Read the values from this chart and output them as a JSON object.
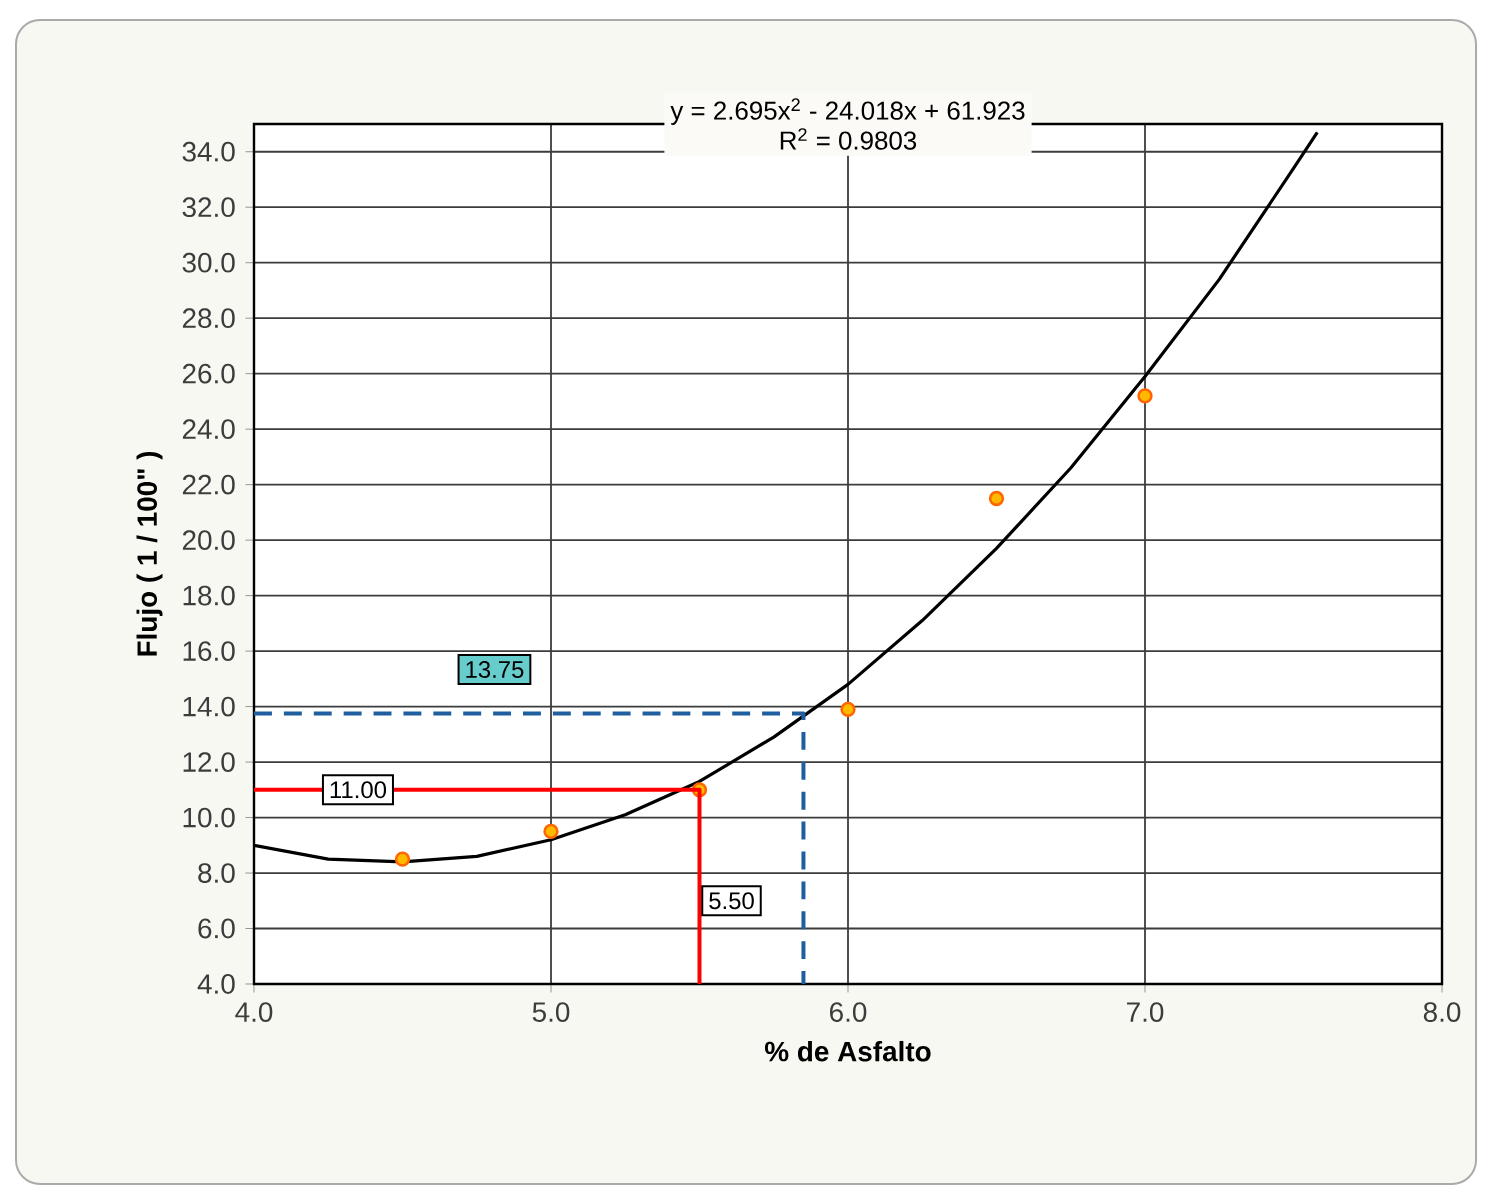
{
  "chart_data": {
    "type": "scatter",
    "xlabel": "% de Asfalto",
    "ylabel": "Flujo ( 1 / 100\" )",
    "xlim": [
      4.0,
      8.0
    ],
    "ylim": [
      4.0,
      35.0
    ],
    "xticks": [
      {
        "value": 4.0,
        "label": "4.0"
      },
      {
        "value": 5.0,
        "label": "5.0"
      },
      {
        "value": 6.0,
        "label": "6.0"
      },
      {
        "value": 7.0,
        "label": "7.0"
      },
      {
        "value": 8.0,
        "label": "8.0"
      }
    ],
    "yticks": [
      {
        "value": 4.0,
        "label": "4.0"
      },
      {
        "value": 6.0,
        "label": "6.0"
      },
      {
        "value": 8.0,
        "label": "8.0"
      },
      {
        "value": 10.0,
        "label": "10.0"
      },
      {
        "value": 12.0,
        "label": "12.0"
      },
      {
        "value": 14.0,
        "label": "14.0"
      },
      {
        "value": 16.0,
        "label": "16.0"
      },
      {
        "value": 18.0,
        "label": "18.0"
      },
      {
        "value": 20.0,
        "label": "20.0"
      },
      {
        "value": 22.0,
        "label": "22.0"
      },
      {
        "value": 24.0,
        "label": "24.0"
      },
      {
        "value": 26.0,
        "label": "26.0"
      },
      {
        "value": 28.0,
        "label": "28.0"
      },
      {
        "value": 30.0,
        "label": "30.0"
      },
      {
        "value": 32.0,
        "label": "32.0"
      },
      {
        "value": 34.0,
        "label": "34.0"
      }
    ],
    "grid": true,
    "series": [
      {
        "type": "line",
        "color": "#000000",
        "marker": "none",
        "x": [
          4.0,
          4.25,
          4.5,
          4.75,
          5.0,
          5.25,
          5.5,
          5.75,
          6.0,
          6.25,
          6.5,
          6.75,
          7.0,
          7.25,
          7.5,
          7.58
        ],
        "values": [
          9.0,
          8.5,
          8.4,
          8.6,
          9.2,
          10.1,
          11.3,
          12.9,
          14.8,
          17.1,
          19.7,
          22.6,
          25.9,
          29.4,
          33.4,
          34.7
        ]
      },
      {
        "color": "#ff6600",
        "marker": "circle",
        "x": [
          4.5,
          5.0,
          5.5,
          6.0,
          6.5,
          7.0
        ],
        "values": [
          8.5,
          9.5,
          11.0,
          13.9,
          21.5,
          25.2
        ]
      },
      {
        "type": "line",
        "color": "#ff0000",
        "marker": "none",
        "line_style": "solid",
        "x": [
          4.0,
          5.5,
          5.5
        ],
        "values": [
          11.0,
          11.0,
          4.0
        ]
      },
      {
        "type": "line",
        "color": "#1f5f9f",
        "marker": "none",
        "line_style": "dashed",
        "x": [
          4.0,
          5.85,
          5.85
        ],
        "values": [
          13.75,
          13.75,
          4.0
        ]
      }
    ],
    "annotations": [
      "y = 2.695x$^{2}$ - 24.018x + 61.923",
      "R$^{2}$ = 0.9803",
      {
        "text": "13.75",
        "x": 4.85,
        "y": 13.75
      },
      {
        "text": "11.00",
        "x": 4.35,
        "y": 11.0
      },
      {
        "text": "5.50",
        "x": 5.5,
        "y": 7.0
      }
    ]
  }
}
